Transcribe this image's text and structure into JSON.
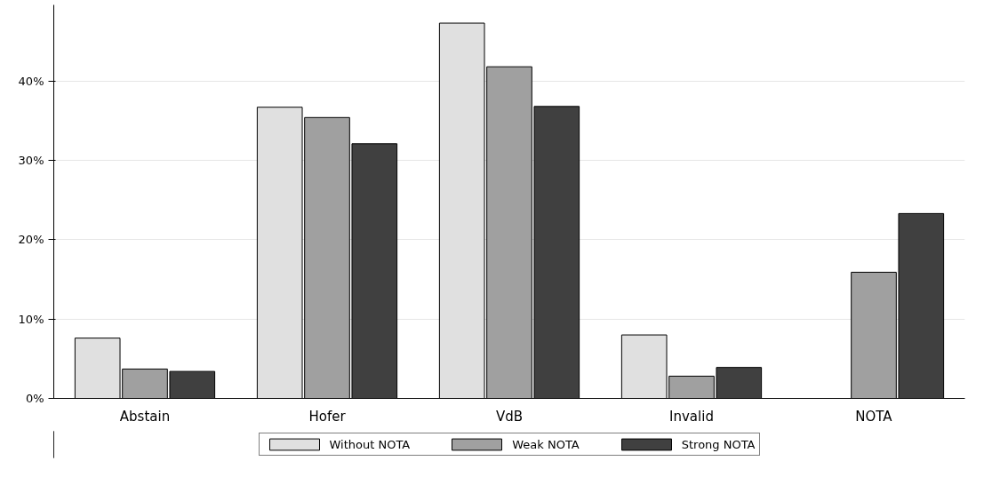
{
  "chart_data": {
    "type": "bar",
    "categories": [
      "Abstain",
      "Hofer",
      "VdB",
      "Invalid",
      "NOTA"
    ],
    "series": [
      {
        "name": "Without NOTA",
        "color": "#e0e0e0",
        "values": [
          7.6,
          36.7,
          47.3,
          8.0,
          null
        ]
      },
      {
        "name": "Weak NOTA",
        "color": "#a0a0a0",
        "values": [
          3.7,
          35.4,
          41.8,
          2.8,
          15.9
        ]
      },
      {
        "name": "Strong NOTA",
        "color": "#404040",
        "values": [
          3.4,
          32.1,
          36.8,
          3.9,
          23.3
        ]
      }
    ],
    "ylim": [
      0,
      49.6
    ],
    "yticks": [
      {
        "value": 0,
        "label": "0%"
      },
      {
        "value": 10,
        "label": "10%"
      },
      {
        "value": 20,
        "label": "20%"
      },
      {
        "value": 30,
        "label": "30%"
      },
      {
        "value": 40,
        "label": "40%"
      }
    ],
    "grid": "y",
    "legend": "bottom"
  }
}
